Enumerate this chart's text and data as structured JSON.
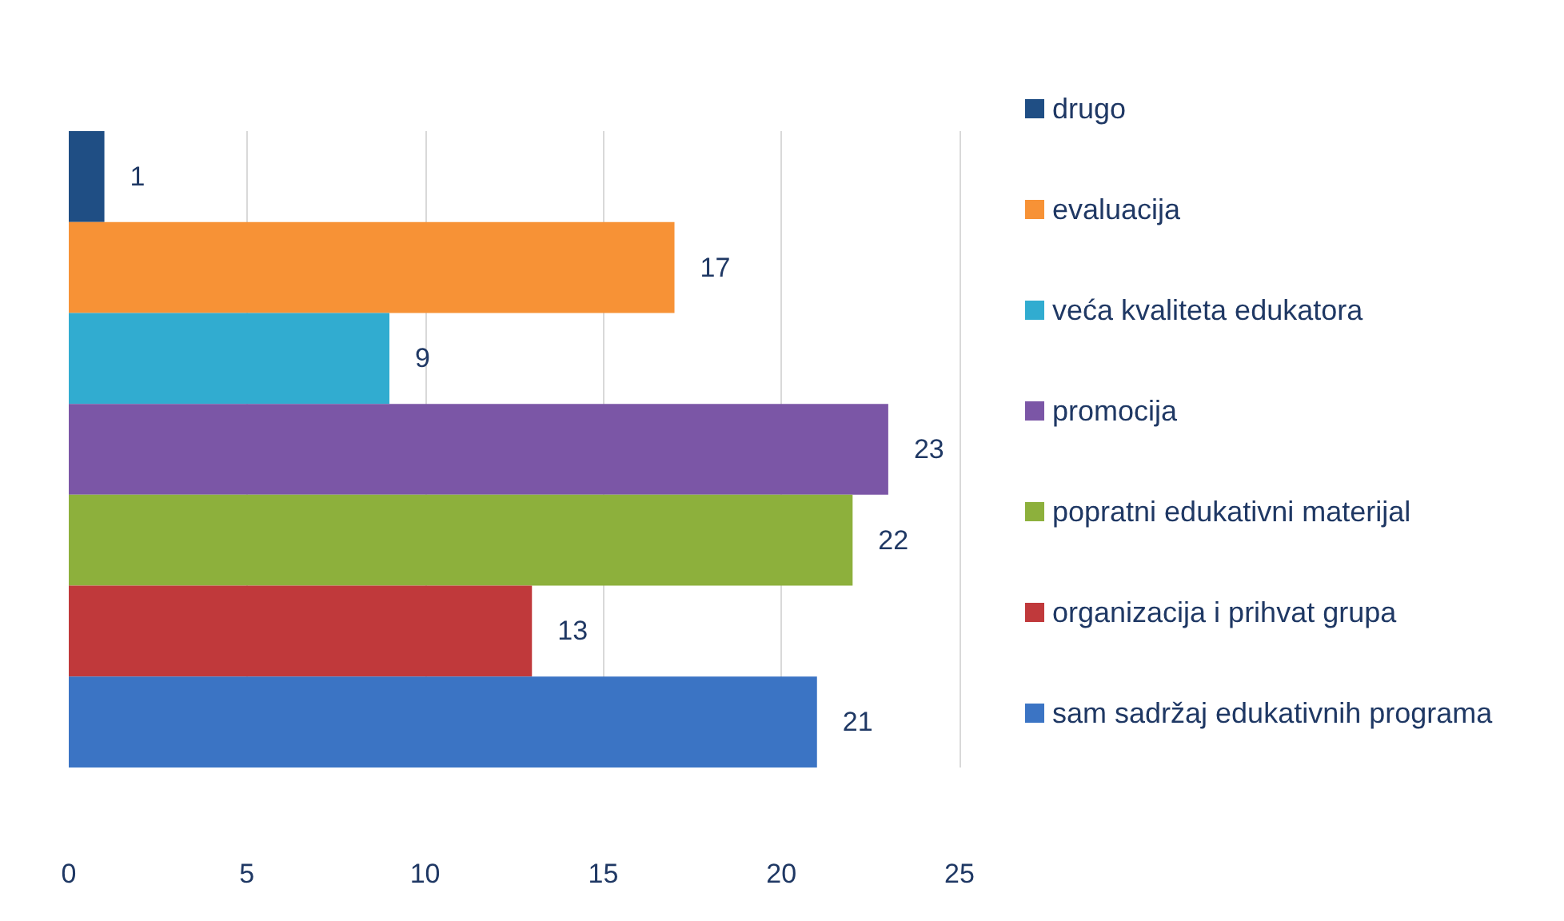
{
  "chart_data": {
    "type": "bar",
    "orientation": "horizontal",
    "stacked": true,
    "categories": [
      null,
      null,
      null,
      null,
      null,
      null,
      null
    ],
    "series": [
      {
        "name": "drugo",
        "color": "#1f4e84",
        "values": [
          1,
          null,
          null,
          null,
          null,
          null,
          null
        ]
      },
      {
        "name": "evaluacija",
        "color": "#f79236",
        "values": [
          null,
          17,
          null,
          null,
          null,
          null,
          null
        ]
      },
      {
        "name": "veća kvaliteta edukatora",
        "color": "#31acd0",
        "values": [
          null,
          null,
          9,
          null,
          null,
          null,
          null
        ]
      },
      {
        "name": "promocija",
        "color": "#7b56a6",
        "values": [
          null,
          null,
          null,
          23,
          null,
          null,
          null
        ]
      },
      {
        "name": "popratni edukativni materijal",
        "color": "#8db03c",
        "values": [
          null,
          null,
          null,
          null,
          22,
          null,
          null
        ]
      },
      {
        "name": "organizacija i prihvat grupa",
        "color": "#c0393b",
        "values": [
          null,
          null,
          null,
          null,
          null,
          13,
          null
        ]
      },
      {
        "name": "sam sadržaj edukativnih programa",
        "color": "#3b74c4",
        "values": [
          null,
          null,
          null,
          null,
          null,
          null,
          21
        ]
      }
    ],
    "xlim": [
      0,
      25
    ],
    "xticks": [
      0,
      5,
      10,
      15,
      20,
      25
    ],
    "grid": "x",
    "data_labels": true,
    "legend": "right"
  }
}
